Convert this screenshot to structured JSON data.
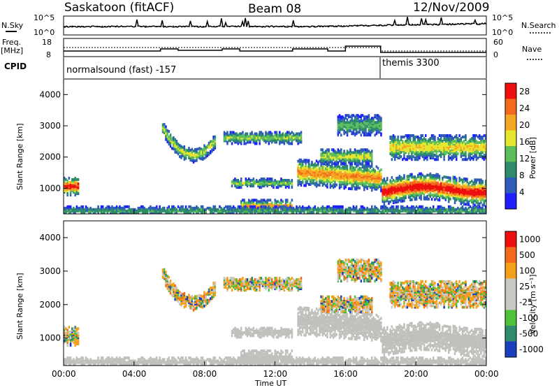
{
  "header": {
    "station": "Saskatoon (fitACF)",
    "beam": "Beam 08",
    "date": "12/Nov/2009"
  },
  "sidepanel": {
    "nsky_label": "N.Sky",
    "nsky_ticks": [
      "10^5",
      "10^0"
    ],
    "nsearch_label": "N.Search",
    "nsearch_ticks": [
      "10^5",
      "10^0"
    ],
    "freq_label_1": "Freq.",
    "freq_label_2": "[MHz]",
    "freq_ticks": [
      "18",
      "8"
    ],
    "nave_label": "Nave",
    "nave_ticks": [
      "60",
      "0"
    ],
    "cpid_label": "CPID"
  },
  "cpid_segments": [
    {
      "label": "normalsound (fast) -157",
      "start_hour": 0
    },
    {
      "label": "themis 3300",
      "start_hour": 18
    }
  ],
  "chart_data": [
    {
      "type": "heatmap",
      "name": "power",
      "ylabel": "Slant Range [km]",
      "xlabel": "Time UT",
      "x_range_hours": [
        0,
        24
      ],
      "x_ticks": [
        "00:00",
        "04:00",
        "08:00",
        "12:00",
        "16:00",
        "20:00",
        "00:00"
      ],
      "ylim": [
        180,
        4500
      ],
      "y_ticks": [
        1000,
        2000,
        3000,
        4000
      ],
      "colorbar": {
        "label": "Power [dB]",
        "ticks": [
          4,
          8,
          12,
          16,
          20,
          24,
          28
        ],
        "colors": [
          "#1e1eff",
          "#2f5cb8",
          "#2e8b6b",
          "#5cbf5c",
          "#e6e62e",
          "#f5a623",
          "#f26b1d",
          "#ee1010"
        ],
        "range": [
          0,
          30
        ]
      }
    },
    {
      "type": "heatmap",
      "name": "velocity",
      "ylabel": "Slant Range [km]",
      "xlabel": "Time UT",
      "x_range_hours": [
        0,
        24
      ],
      "x_ticks": [
        "00:00",
        "04:00",
        "08:00",
        "12:00",
        "16:00",
        "20:00",
        "00:00"
      ],
      "ylim": [
        180,
        4500
      ],
      "y_ticks": [
        1000,
        2000,
        3000,
        4000
      ],
      "colorbar": {
        "label": "Velocity [m s⁻¹]",
        "ticks": [
          "1000",
          "500",
          "100",
          "25",
          "-25",
          "-100",
          "-500",
          "-1000"
        ],
        "colors": [
          "#1b3fbf",
          "#2e8b6b",
          "#4fc13a",
          "#c8c8c4",
          "#c8c8c4",
          "#f5a01a",
          "#f26b1d",
          "#ee1010"
        ]
      },
      "ground_scatter_color": "#c0c0bc"
    }
  ]
}
